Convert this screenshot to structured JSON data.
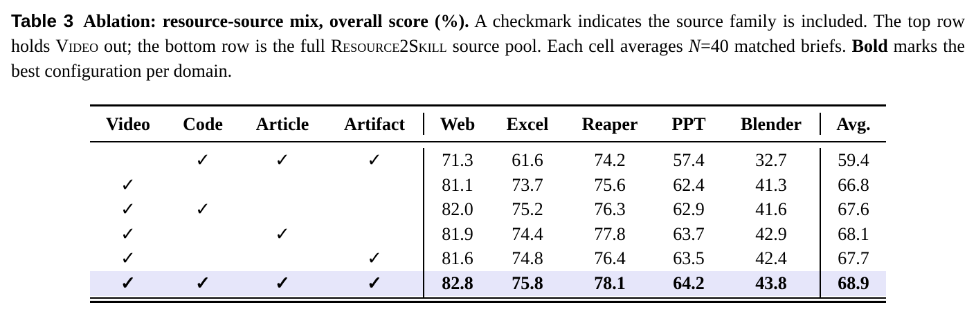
{
  "caption": {
    "segments": [
      {
        "text": "Table 3",
        "style": "label"
      },
      {
        "text": "Ablation: resource-source mix, overall score (%).",
        "style": "bold"
      },
      {
        "text": " A checkmark indicates the source family is included. The top row holds ",
        "style": "plain"
      },
      {
        "text": "Video",
        "style": "smallcaps"
      },
      {
        "text": " out; the bottom row is the full ",
        "style": "plain"
      },
      {
        "text": "Resource2Skill",
        "style": "smallcaps"
      },
      {
        "text": " source pool. Each cell averages ",
        "style": "plain"
      },
      {
        "text": "N",
        "style": "italic"
      },
      {
        "text": "=40 matched briefs. ",
        "style": "plain"
      },
      {
        "text": "Bold",
        "style": "bold"
      },
      {
        "text": " marks the best configuration per domain.",
        "style": "plain"
      }
    ]
  },
  "table": {
    "header": [
      "Video",
      "Code",
      "Article",
      "Artifact",
      "Web",
      "Excel",
      "Reaper",
      "PPT",
      "Blender",
      "Avg."
    ],
    "rows": [
      {
        "cells": [
          null,
          "✓",
          "✓",
          "✓",
          "71.3",
          "61.6",
          "74.2",
          "57.4",
          "32.7",
          "59.4"
        ],
        "highlight": false
      },
      {
        "cells": [
          "✓",
          null,
          null,
          null,
          "81.1",
          "73.7",
          "75.6",
          "62.4",
          "41.3",
          "66.8"
        ],
        "highlight": false
      },
      {
        "cells": [
          "✓",
          "✓",
          null,
          null,
          "82.0",
          "75.2",
          "76.3",
          "62.9",
          "41.6",
          "67.6"
        ],
        "highlight": false
      },
      {
        "cells": [
          "✓",
          null,
          "✓",
          null,
          "81.9",
          "74.4",
          "77.8",
          "63.7",
          "42.9",
          "68.1"
        ],
        "highlight": false
      },
      {
        "cells": [
          "✓",
          null,
          null,
          "✓",
          "81.6",
          "74.8",
          "76.4",
          "63.5",
          "42.4",
          "67.7"
        ],
        "highlight": false
      },
      {
        "cells": [
          "✓",
          "✓",
          "✓",
          "✓",
          "82.8",
          "75.8",
          "78.1",
          "64.2",
          "43.8",
          "68.9"
        ],
        "highlight": true
      }
    ]
  }
}
